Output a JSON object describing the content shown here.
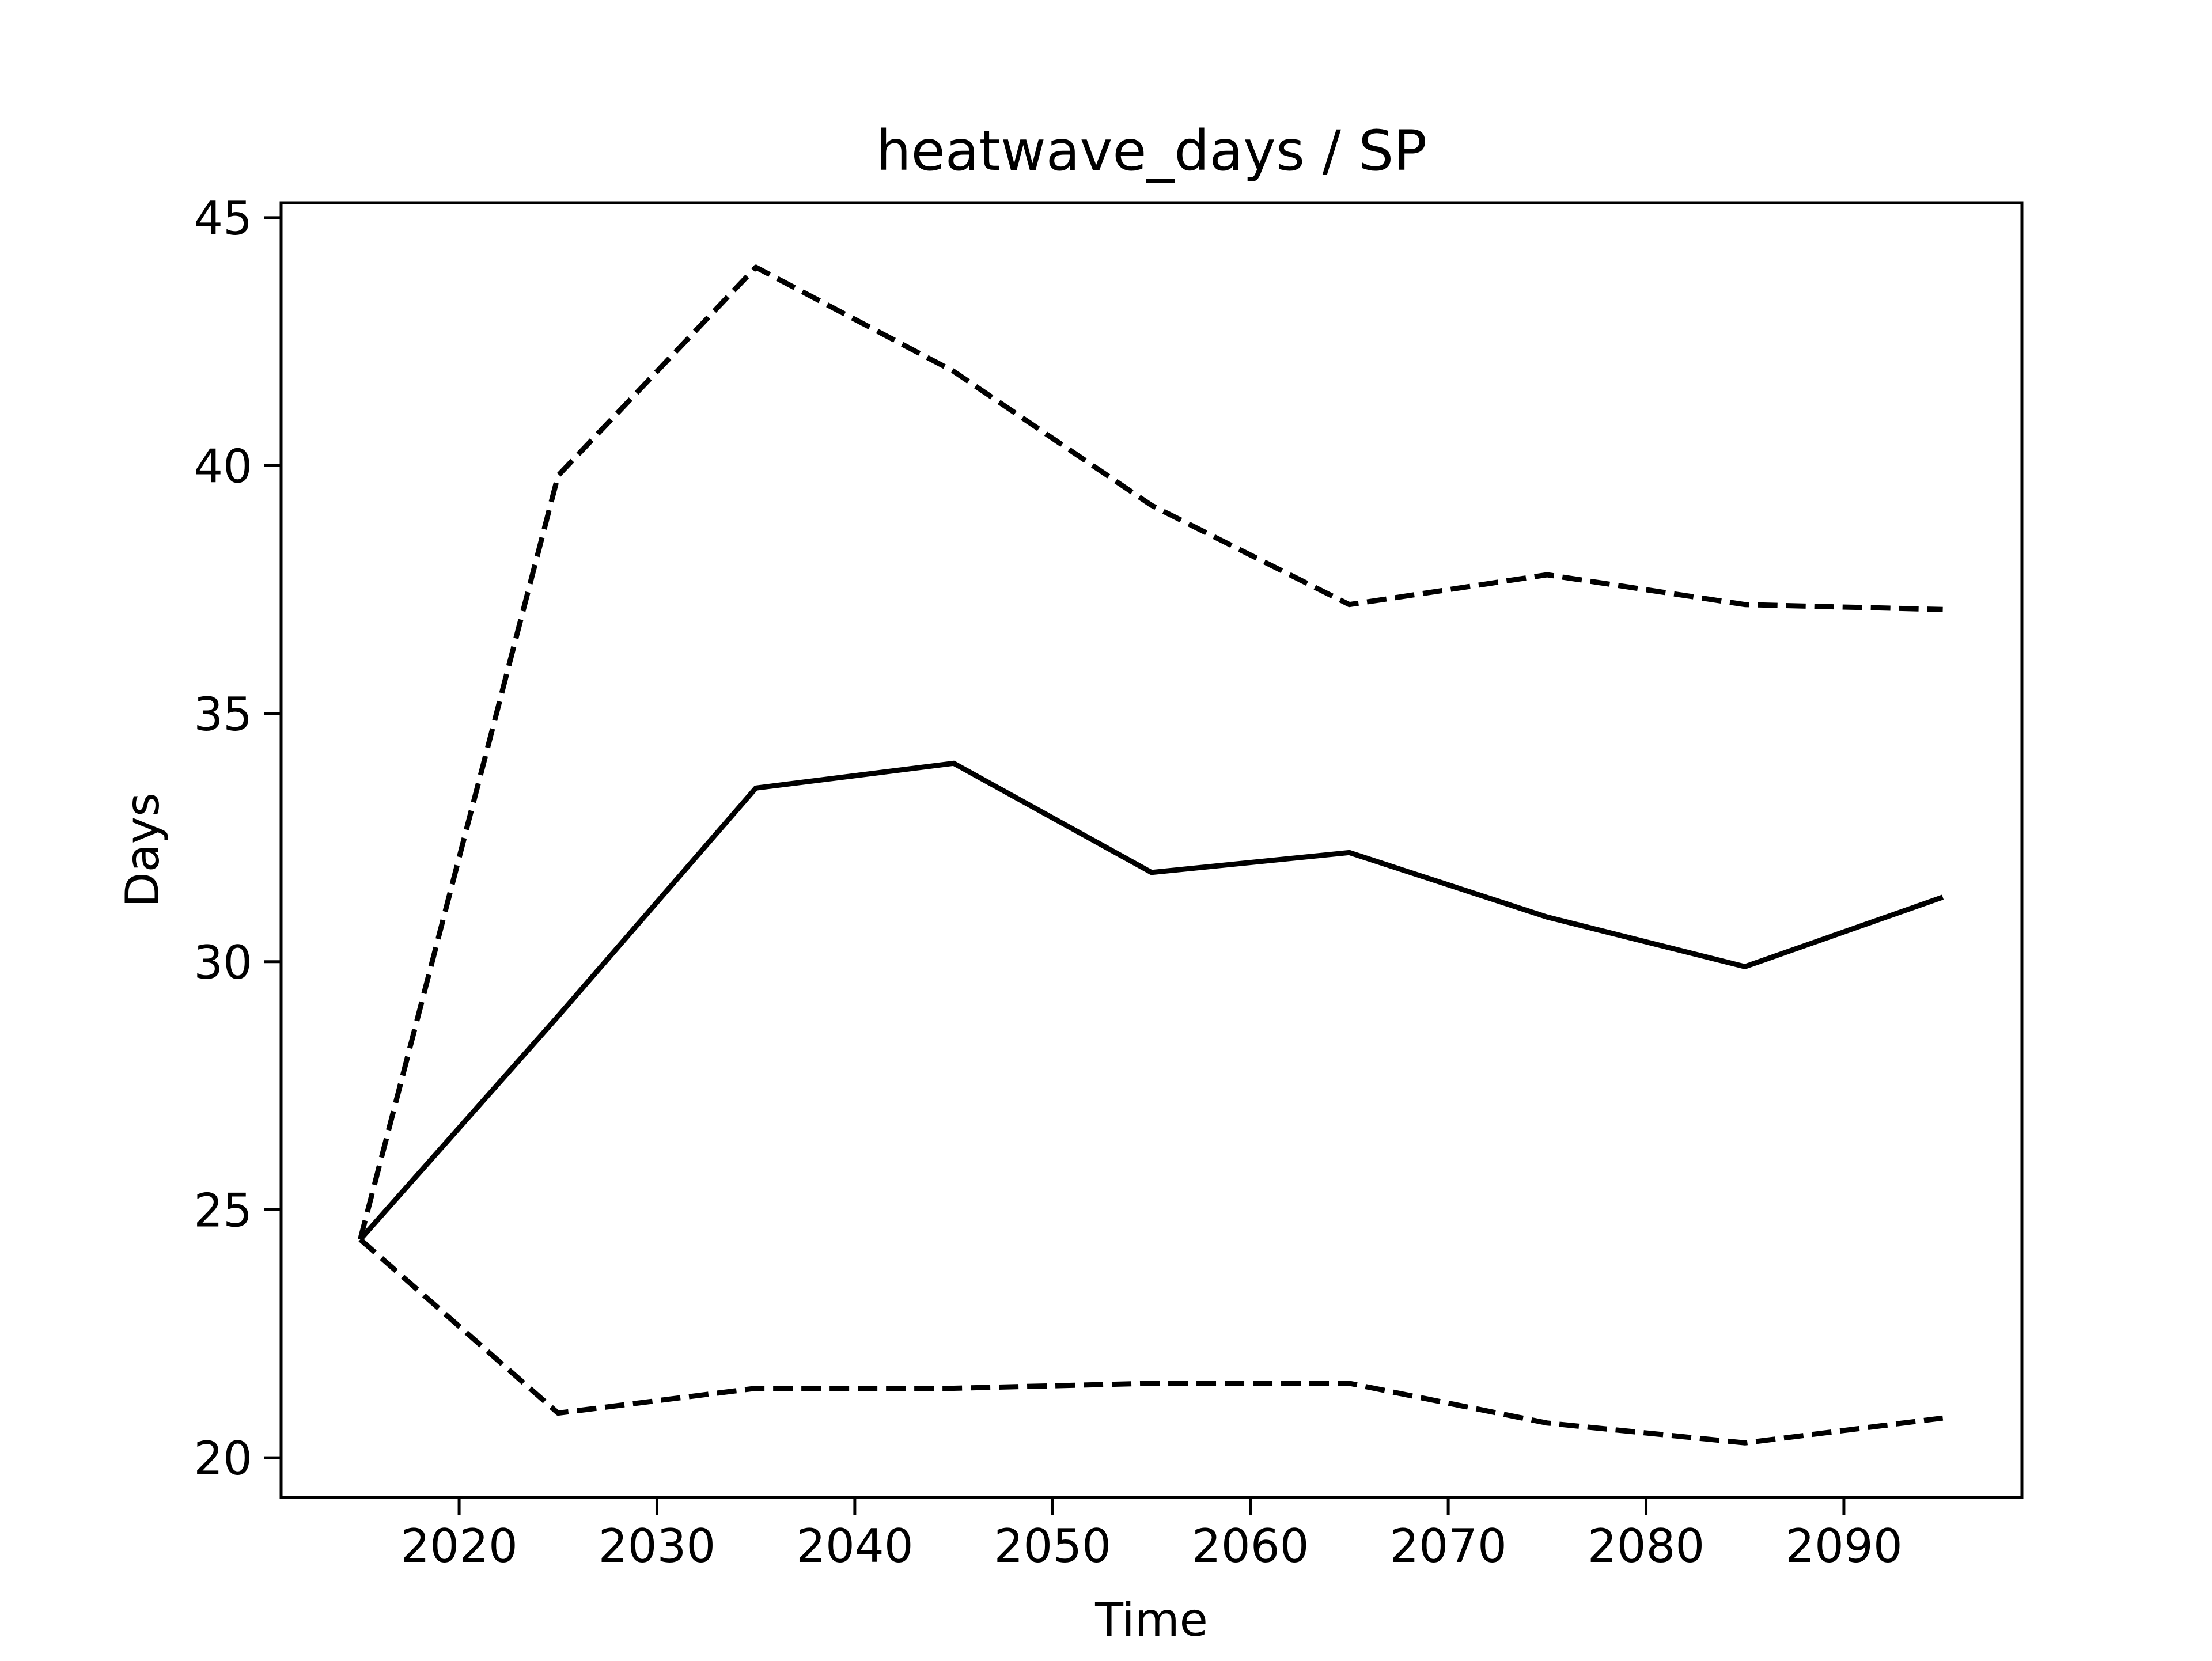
{
  "chart_data": {
    "type": "line",
    "title": "heatwave_days / SP",
    "xlabel": "Time",
    "ylabel": "Days",
    "x": [
      2015,
      2025,
      2035,
      2045,
      2055,
      2065,
      2075,
      2085,
      2095
    ],
    "xlim": [
      2011,
      2099
    ],
    "ylim": [
      19.2,
      45.3
    ],
    "x_ticks": [
      2020,
      2030,
      2040,
      2050,
      2060,
      2070,
      2080,
      2090
    ],
    "y_ticks": [
      20,
      25,
      30,
      35,
      40,
      45
    ],
    "grid": false,
    "legend": "none",
    "series": [
      {
        "line_style": "solid",
        "color": "#000000",
        "values": [
          24.4,
          28.9,
          33.5,
          34.0,
          31.8,
          32.2,
          30.9,
          29.9,
          31.3
        ]
      },
      {
        "line_style": "dashed",
        "color": "#000000",
        "values": [
          24.4,
          39.8,
          44.0,
          41.9,
          39.2,
          37.2,
          37.8,
          37.2,
          37.1
        ]
      },
      {
        "line_style": "dashed",
        "color": "#000000",
        "values": [
          24.4,
          20.9,
          21.4,
          21.4,
          21.5,
          21.5,
          20.7,
          20.3,
          20.8
        ]
      }
    ]
  }
}
